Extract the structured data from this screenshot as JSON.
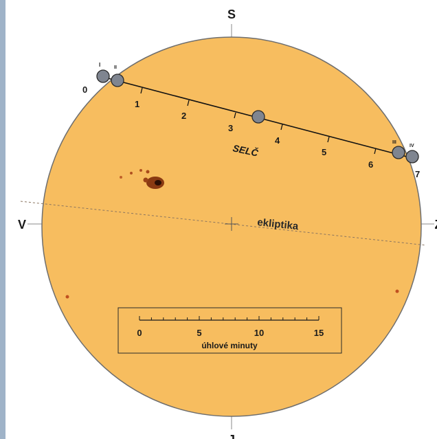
{
  "compass": {
    "north": "S",
    "south": "J",
    "east": "V",
    "west": "Z"
  },
  "path": {
    "label": "SELČ",
    "ticks": [
      "0",
      "1",
      "2",
      "3",
      "4",
      "5",
      "6",
      "7"
    ],
    "contacts": [
      "I",
      "II",
      "III",
      "IV"
    ]
  },
  "ecliptic": {
    "label": "ekliptika"
  },
  "scale": {
    "ticks": [
      "0",
      "5",
      "10",
      "15"
    ],
    "unit": "úhlové minuty"
  },
  "colors": {
    "sun": "#f7bd5f",
    "sun_edge": "#6e6e6e",
    "planet": "#7f8590",
    "sunspot": "#7a2a0a"
  }
}
